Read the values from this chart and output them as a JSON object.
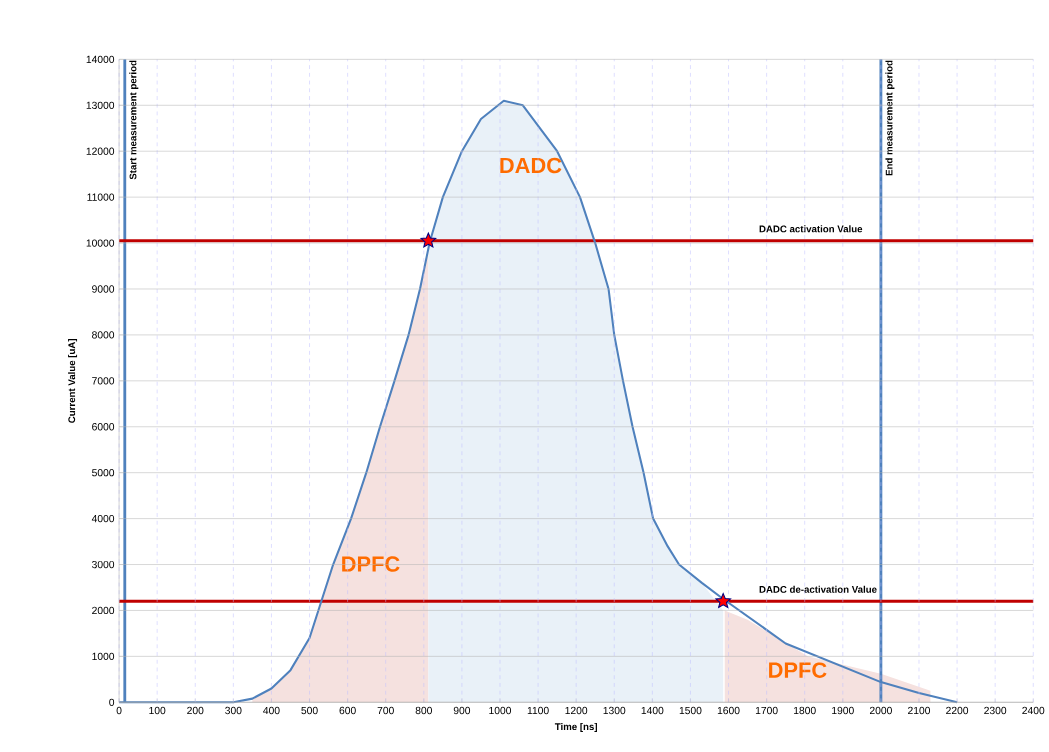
{
  "chart_data": {
    "type": "line",
    "xlabel": "Time [ns]",
    "ylabel": "Current Value [uA]",
    "xlim": [
      0,
      2400
    ],
    "ylim": [
      0,
      14000
    ],
    "xticks": [
      0,
      100,
      200,
      300,
      400,
      500,
      600,
      700,
      800,
      900,
      1000,
      1100,
      1200,
      1300,
      1400,
      1500,
      1600,
      1700,
      1800,
      1900,
      2000,
      2100,
      2200,
      2300,
      2400
    ],
    "yticks": [
      0,
      1000,
      2000,
      3000,
      4000,
      5000,
      6000,
      7000,
      8000,
      9000,
      10000,
      11000,
      12000,
      13000,
      14000
    ],
    "grid": true,
    "series": [
      {
        "type": "area",
        "color": "#f5e1df",
        "x": [
          350,
          400,
          450,
          500,
          562,
          609,
          649,
          685,
          723,
          760,
          790,
          812
        ],
        "values": [
          80,
          300,
          700,
          1400,
          3000,
          4000,
          5000,
          6000,
          7000,
          8000,
          9000,
          9800
        ]
      },
      {
        "type": "area",
        "color": "#e9f1f8",
        "x": [
          812,
          840,
          850,
          900,
          950,
          1010,
          1060,
          1150,
          1210,
          1250,
          1285,
          1300,
          1323,
          1348,
          1377,
          1402,
          1440,
          1470,
          1530,
          1586
        ],
        "values": [
          9800,
          10700,
          11000,
          12000,
          12700,
          13100,
          13000,
          12000,
          11000,
          10000,
          9000,
          8000,
          7000,
          6000,
          5000,
          4000,
          3400,
          3000,
          2600,
          2000
        ]
      },
      {
        "type": "area",
        "color": "#f5e1df",
        "x": [
          1590,
          1650,
          1808,
          2000,
          2130
        ],
        "values": [
          2000,
          1800,
          1000,
          620,
          250
        ]
      },
      {
        "color": "#4f81bd",
        "x": [
          0,
          200,
          300,
          350,
          400,
          450,
          500,
          562,
          609,
          649,
          685,
          723,
          760,
          790,
          815,
          850,
          900,
          950,
          1010,
          1060,
          1150,
          1210,
          1250,
          1285,
          1300,
          1323,
          1348,
          1377,
          1402,
          1440,
          1470,
          1530,
          1586,
          1750,
          2000,
          2100,
          2200
        ],
        "values": [
          0,
          0,
          0,
          80,
          300,
          700,
          1400,
          3000,
          4000,
          5000,
          6000,
          7000,
          8000,
          9000,
          10000,
          11000,
          12000,
          12700,
          13100,
          13000,
          12000,
          11000,
          10000,
          9000,
          8000,
          7000,
          6000,
          5000,
          4000,
          3400,
          3000,
          2600,
          2250,
          1280,
          440,
          200,
          0
        ]
      },
      {
        "type": "scatter",
        "color": "#ff0000",
        "marker": "star",
        "x": [
          812,
          1586
        ],
        "values": [
          10050,
          2200
        ]
      }
    ],
    "ref_lines": [
      {
        "axis": "x",
        "value": 15,
        "label": "Start measurement period",
        "color": "#4f81bd"
      },
      {
        "axis": "x",
        "value": 2000,
        "label": "End measurement period",
        "color": "#4f81bd"
      },
      {
        "axis": "y",
        "value": 10050,
        "label": "DADC activation Value",
        "color": "#c00000"
      },
      {
        "axis": "y",
        "value": 2200,
        "label": "DADC de-activation Value",
        "color": "#c00000"
      }
    ],
    "annotations": [
      "DADC",
      "DPFC",
      "DPFC"
    ]
  }
}
